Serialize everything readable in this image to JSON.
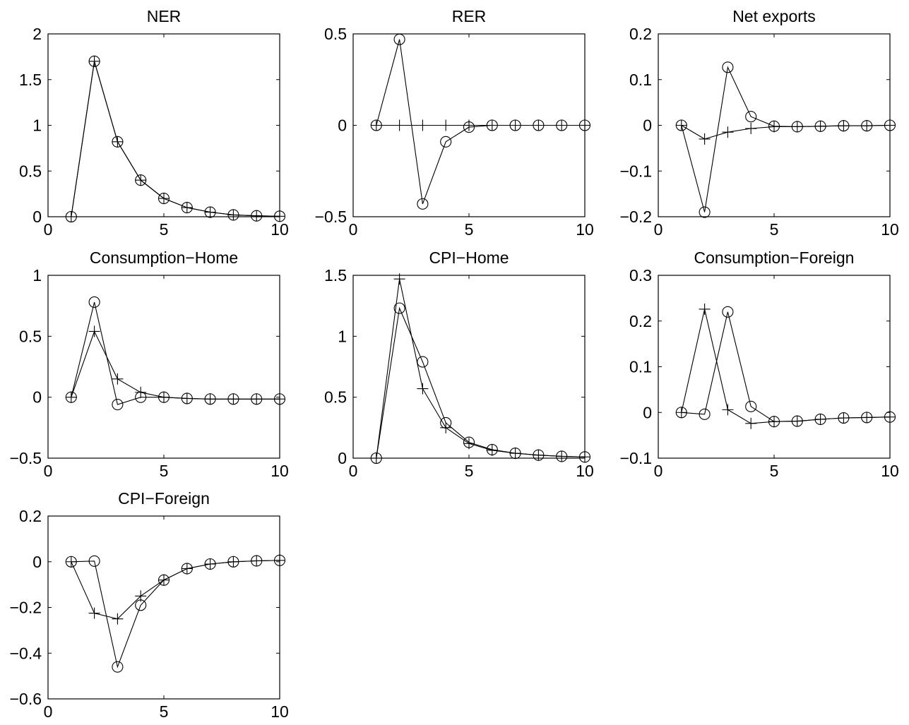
{
  "chart_data": [
    {
      "type": "line",
      "title": "NER",
      "xlim": [
        0,
        10
      ],
      "ylim": [
        0,
        2
      ],
      "xticks": [
        "0",
        "5",
        "10"
      ],
      "yticks": [
        "0",
        "0.5",
        "1",
        "1.5",
        "2"
      ],
      "x": [
        1,
        2,
        3,
        4,
        5,
        6,
        7,
        8,
        9,
        10
      ],
      "series": [
        {
          "marker": "circle",
          "values": [
            0,
            1.7,
            0.82,
            0.4,
            0.2,
            0.1,
            0.05,
            0.02,
            0.01,
            0.005
          ]
        },
        {
          "marker": "plus",
          "values": [
            0,
            1.7,
            0.82,
            0.4,
            0.2,
            0.1,
            0.05,
            0.02,
            0.01,
            0.005
          ]
        }
      ]
    },
    {
      "type": "line",
      "title": "RER",
      "xlim": [
        0,
        10
      ],
      "ylim": [
        -0.5,
        0.5
      ],
      "xticks": [
        "0",
        "5",
        "10"
      ],
      "yticks": [
        "−0.5",
        "0",
        "0.5"
      ],
      "x": [
        1,
        2,
        3,
        4,
        5,
        6,
        7,
        8,
        9,
        10
      ],
      "series": [
        {
          "marker": "circle",
          "values": [
            0,
            0.47,
            -0.43,
            -0.09,
            -0.01,
            0,
            0,
            0,
            0,
            0
          ]
        },
        {
          "marker": "plus",
          "values": [
            0,
            0,
            0,
            0,
            0,
            0,
            0,
            0,
            0,
            0
          ]
        }
      ]
    },
    {
      "type": "line",
      "title": "Net exports",
      "xlim": [
        0,
        10
      ],
      "ylim": [
        -0.2,
        0.2
      ],
      "xticks": [
        "0",
        "5",
        "10"
      ],
      "yticks": [
        "−0.2",
        "−0.1",
        "0",
        "0.1",
        "0.2"
      ],
      "x": [
        1,
        2,
        3,
        4,
        5,
        6,
        7,
        8,
        9,
        10
      ],
      "series": [
        {
          "marker": "circle",
          "values": [
            0,
            -0.19,
            0.127,
            0.019,
            -0.002,
            -0.003,
            -0.002,
            -0.001,
            -0.001,
            0
          ]
        },
        {
          "marker": "plus",
          "values": [
            0,
            -0.03,
            -0.015,
            -0.007,
            -0.003,
            -0.003,
            -0.002,
            -0.001,
            -0.001,
            0
          ]
        }
      ]
    },
    {
      "type": "line",
      "title": "Consumption−Home",
      "xlim": [
        0,
        10
      ],
      "ylim": [
        -0.5,
        1
      ],
      "xticks": [
        "0",
        "5",
        "10"
      ],
      "yticks": [
        "−0.5",
        "0",
        "0.5",
        "1"
      ],
      "x": [
        1,
        2,
        3,
        4,
        5,
        6,
        7,
        8,
        9,
        10
      ],
      "series": [
        {
          "marker": "circle",
          "values": [
            0,
            0.78,
            -0.06,
            0,
            0,
            -0.01,
            -0.015,
            -0.015,
            -0.015,
            -0.015
          ]
        },
        {
          "marker": "plus",
          "values": [
            0,
            0.54,
            0.15,
            0.04,
            0,
            -0.01,
            -0.015,
            -0.015,
            -0.015,
            -0.015
          ]
        }
      ]
    },
    {
      "type": "line",
      "title": "CPI−Home",
      "xlim": [
        0,
        10
      ],
      "ylim": [
        0,
        1.5
      ],
      "xticks": [
        "0",
        "5",
        "10"
      ],
      "yticks": [
        "0",
        "0.5",
        "1",
        "1.5"
      ],
      "x": [
        1,
        2,
        3,
        4,
        5,
        6,
        7,
        8,
        9,
        10
      ],
      "series": [
        {
          "marker": "circle",
          "values": [
            0,
            1.23,
            0.79,
            0.29,
            0.13,
            0.07,
            0.04,
            0.025,
            0.015,
            0.01
          ]
        },
        {
          "marker": "plus",
          "values": [
            0,
            1.47,
            0.57,
            0.25,
            0.12,
            0.065,
            0.04,
            0.025,
            0.015,
            0.01
          ]
        }
      ]
    },
    {
      "type": "line",
      "title": "Consumption−Foreign",
      "xlim": [
        0,
        10
      ],
      "ylim": [
        -0.1,
        0.3
      ],
      "xticks": [
        "0",
        "5",
        "10"
      ],
      "yticks": [
        "−0.1",
        "0",
        "0.1",
        "0.2",
        "0.3"
      ],
      "x": [
        1,
        2,
        3,
        4,
        5,
        6,
        7,
        8,
        9,
        10
      ],
      "series": [
        {
          "marker": "circle",
          "values": [
            0,
            -0.004,
            0.22,
            0.013,
            -0.02,
            -0.019,
            -0.015,
            -0.012,
            -0.011,
            -0.01
          ]
        },
        {
          "marker": "plus",
          "values": [
            0,
            0.226,
            0.006,
            -0.024,
            -0.02,
            -0.019,
            -0.015,
            -0.012,
            -0.011,
            -0.01
          ]
        }
      ]
    },
    {
      "type": "line",
      "title": "CPI−Foreign",
      "xlim": [
        0,
        10
      ],
      "ylim": [
        -0.6,
        0.2
      ],
      "xticks": [
        "0",
        "5",
        "10"
      ],
      "yticks": [
        "−0.6",
        "−0.4",
        "−0.2",
        "0",
        "0.2"
      ],
      "x": [
        1,
        2,
        3,
        4,
        5,
        6,
        7,
        8,
        9,
        10
      ],
      "series": [
        {
          "marker": "circle",
          "values": [
            0,
            0.003,
            -0.46,
            -0.19,
            -0.08,
            -0.03,
            -0.01,
            0,
            0.004,
            0.006
          ]
        },
        {
          "marker": "plus",
          "values": [
            0,
            -0.225,
            -0.25,
            -0.15,
            -0.08,
            -0.03,
            -0.01,
            0,
            0.004,
            0.006
          ]
        }
      ]
    }
  ]
}
